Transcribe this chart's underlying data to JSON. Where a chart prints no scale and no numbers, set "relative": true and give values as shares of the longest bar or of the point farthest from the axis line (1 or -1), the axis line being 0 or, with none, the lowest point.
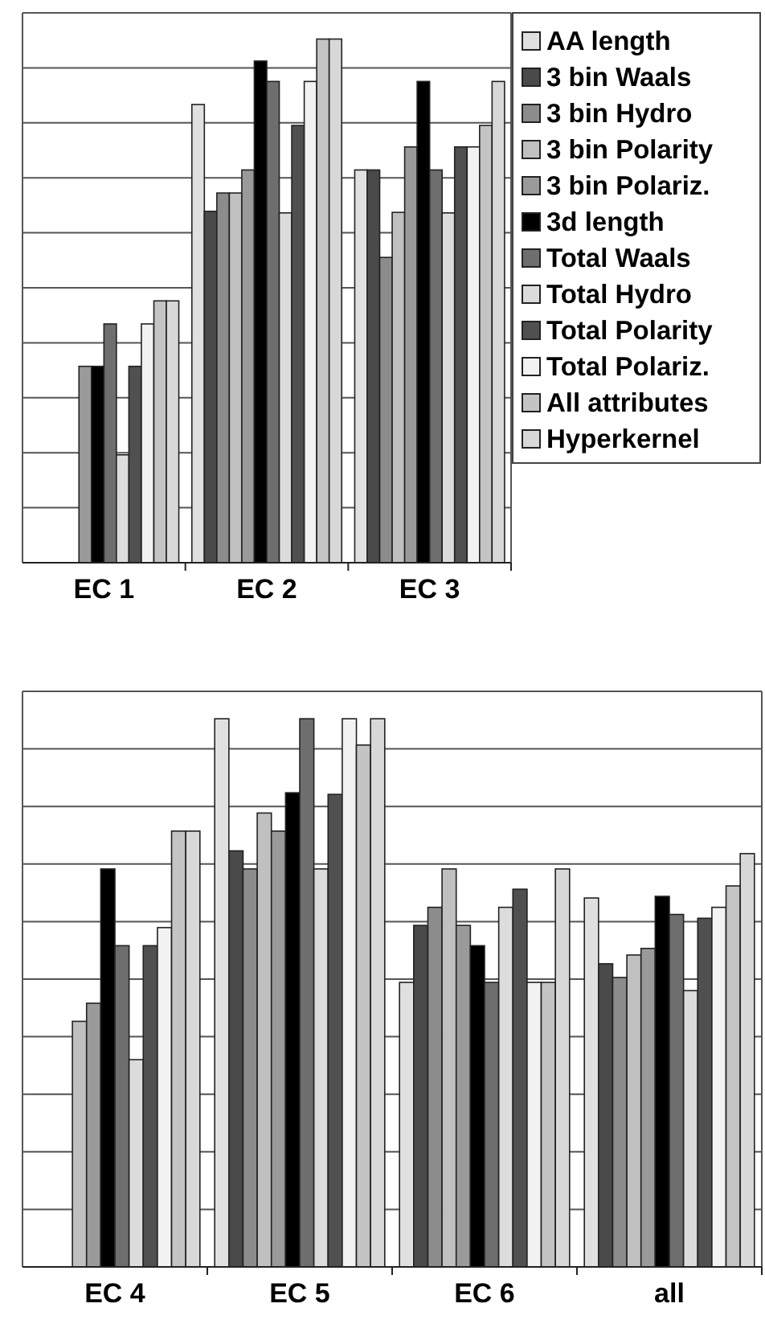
{
  "chart_data": [
    {
      "type": "bar",
      "relative": true,
      "categories": [
        "EC 1",
        "EC 2",
        "EC 3"
      ],
      "grid": "y",
      "legend": "right",
      "series": [
        {
          "name": "AA length",
          "color": "#e0e0e0",
          "values": [
            null,
            0.875,
            0.75
          ]
        },
        {
          "name": "3 bin Waals",
          "color": "#4a4a4a",
          "values": [
            null,
            0.671,
            0.75
          ]
        },
        {
          "name": "3 bin Hydro",
          "color": "#8c8c8c",
          "values": [
            null,
            0.706,
            0.583
          ]
        },
        {
          "name": "3 bin Polarity",
          "color": "#c0c0c0",
          "values": [
            null,
            0.706,
            0.669
          ]
        },
        {
          "name": "3 bin Polariz.",
          "color": "#9a9a9a",
          "values": [
            0.375,
            0.75,
            0.794
          ]
        },
        {
          "name": "3d length",
          "color": "#000000",
          "values": [
            0.375,
            0.958,
            0.919
          ]
        },
        {
          "name": "Total Waals",
          "color": "#6e6e6e",
          "values": [
            0.456,
            0.919,
            0.75
          ]
        },
        {
          "name": "Total Hydro",
          "color": "#dcdcdc",
          "values": [
            0.206,
            0.668,
            0.668
          ]
        },
        {
          "name": "Total Polarity",
          "color": "#505050",
          "values": [
            0.375,
            0.835,
            0.794
          ]
        },
        {
          "name": "Total Polariz.",
          "color": "#f2f2f2",
          "values": [
            0.456,
            0.919,
            0.794
          ]
        },
        {
          "name": "All attributes",
          "color": "#c4c4c4",
          "values": [
            0.5,
            1,
            0.835
          ]
        },
        {
          "name": "Hyperkernel",
          "color": "#d8d8d8",
          "values": [
            0.5,
            1,
            0.919
          ]
        }
      ]
    },
    {
      "type": "bar",
      "relative": true,
      "categories": [
        "EC 4",
        "EC 5",
        "EC 6",
        "all"
      ],
      "grid": "y",
      "series": [
        {
          "color": "#e0e0e0",
          "values": [
            null,
            1,
            0.519,
            0.673
          ]
        },
        {
          "color": "#4a4a4a",
          "values": [
            null,
            0.759,
            0.623,
            0.553
          ]
        },
        {
          "color": "#8c8c8c",
          "values": [
            null,
            0.726,
            0.656,
            0.528
          ]
        },
        {
          "color": "#c0c0c0",
          "values": [
            0.448,
            0.828,
            0.726,
            0.569
          ]
        },
        {
          "color": "#9a9a9a",
          "values": [
            0.481,
            0.795,
            0.623,
            0.581
          ]
        },
        {
          "color": "#000000",
          "values": [
            0.726,
            0.865,
            0.586,
            0.676
          ]
        },
        {
          "color": "#6e6e6e",
          "values": [
            0.586,
            1,
            0.519,
            0.643
          ]
        },
        {
          "color": "#dcdcdc",
          "values": [
            0.378,
            0.726,
            0.656,
            0.504
          ]
        },
        {
          "color": "#505050",
          "values": [
            0.586,
            0.862,
            0.689,
            0.636
          ]
        },
        {
          "color": "#f2f2f2",
          "values": [
            0.619,
            1,
            0.519,
            0.656
          ]
        },
        {
          "color": "#c4c4c4",
          "values": [
            0.795,
            0.952,
            0.519,
            0.695
          ]
        },
        {
          "color": "#d8d8d8",
          "values": [
            0.795,
            1,
            0.726,
            0.754
          ]
        }
      ]
    }
  ]
}
